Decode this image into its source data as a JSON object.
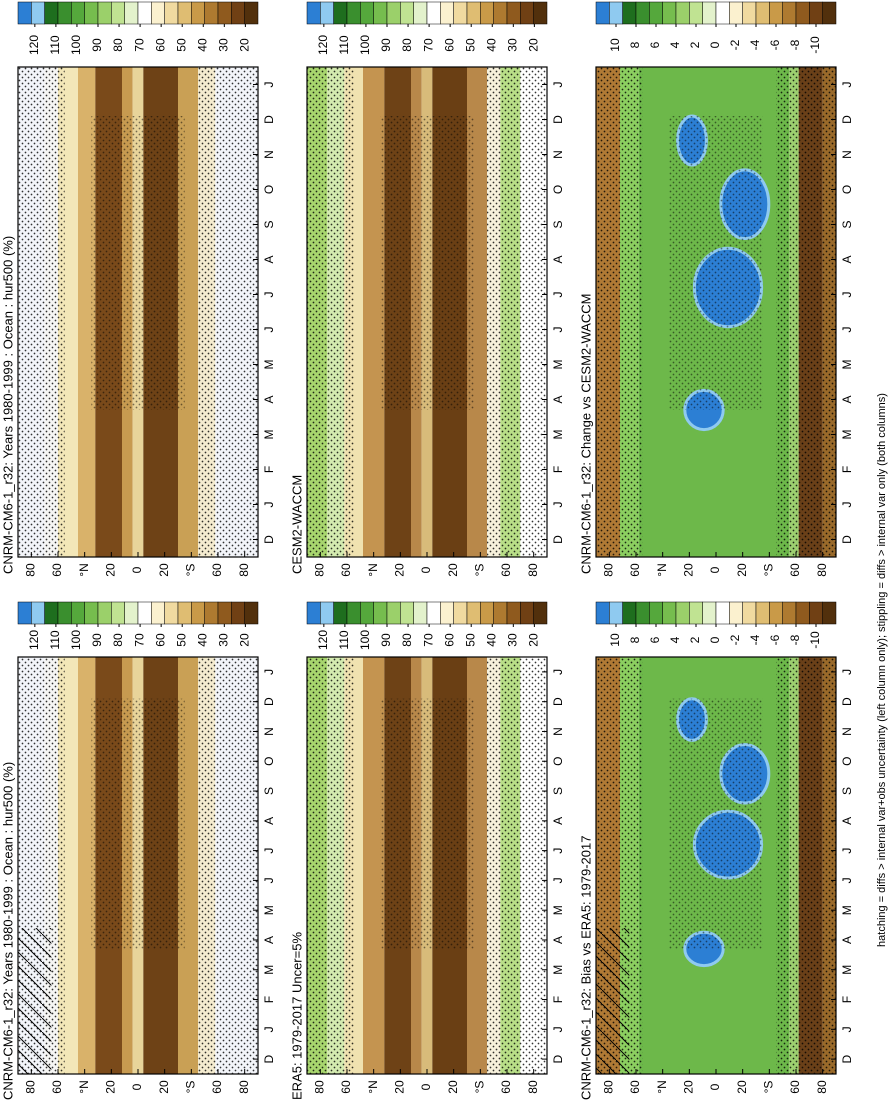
{
  "x_labels": [
    "D",
    "J",
    "F",
    "M",
    "A",
    "M",
    "J",
    "J",
    "A",
    "S",
    "O",
    "N",
    "D",
    "J"
  ],
  "ylim": [
    -90,
    90
  ],
  "yticks": [
    80,
    60,
    {
      "value": 40,
      "label": "°N"
    },
    20,
    0,
    {
      "value": -20,
      "label": "20"
    },
    {
      "value": -40,
      "label": "°S"
    },
    {
      "value": -60,
      "label": "60"
    },
    {
      "value": -80,
      "label": "80"
    }
  ],
  "colorbar_colors": [
    "#2c7fd4",
    "#8fcaf0",
    "#1e6e1e",
    "#3a8f2e",
    "#55a83c",
    "#76bd4e",
    "#9bd06a",
    "#c0e392",
    "#e3f2cc",
    "#ffffff",
    "#fbf1cf",
    "#f0daa0",
    "#dfbd72",
    "#c99a48",
    "#ae7a30",
    "#8f5a1e",
    "#704014",
    "#52300c"
  ],
  "panels": [
    {
      "title": "CNRM-CM6-1_r32: Years 1980-1999 : Ocean : hur500 (%)",
      "colorbar_ticks": [
        120,
        110,
        100,
        90,
        80,
        70,
        60,
        50,
        40,
        30,
        20
      ],
      "colorbar_lim": [
        128,
        14
      ]
    },
    {
      "title": "CNRM-CM6-1_r32: Years 1980-1999 : Ocean : hur500 (%)",
      "colorbar_ticks": [
        120,
        110,
        100,
        90,
        80,
        70,
        60,
        50,
        40,
        30,
        20
      ],
      "colorbar_lim": [
        128,
        14
      ]
    },
    {
      "title": "ERA5: 1979-2017 Uncer=5%",
      "colorbar_ticks": [
        120,
        110,
        100,
        90,
        80,
        70,
        60,
        50,
        40,
        30,
        20
      ],
      "colorbar_lim": [
        128,
        14
      ]
    },
    {
      "title": "CESM2-WACCM",
      "colorbar_ticks": [
        120,
        110,
        100,
        90,
        80,
        70,
        60,
        50,
        40,
        30,
        20
      ],
      "colorbar_lim": [
        128,
        14
      ]
    },
    {
      "title": "CNRM-CM6-1_r32: Bias vs ERA5: 1979-2017",
      "colorbar_ticks": [
        10,
        8,
        6,
        4,
        2,
        0,
        -2,
        -4,
        -6,
        -8,
        -10
      ],
      "colorbar_lim": [
        12,
        -12
      ]
    },
    {
      "title": "CNRM-CM6-1_r32: Change vs CESM2-WACCM",
      "colorbar_ticks": [
        10,
        8,
        6,
        4,
        2,
        0,
        -2,
        -4,
        -6,
        -8,
        -10
      ],
      "colorbar_lim": [
        12,
        -12
      ]
    }
  ],
  "footer": "hatching = diffs > internal var+obs uncertainty (left column only); stippling = diffs > internal var only (both columns)"
}
